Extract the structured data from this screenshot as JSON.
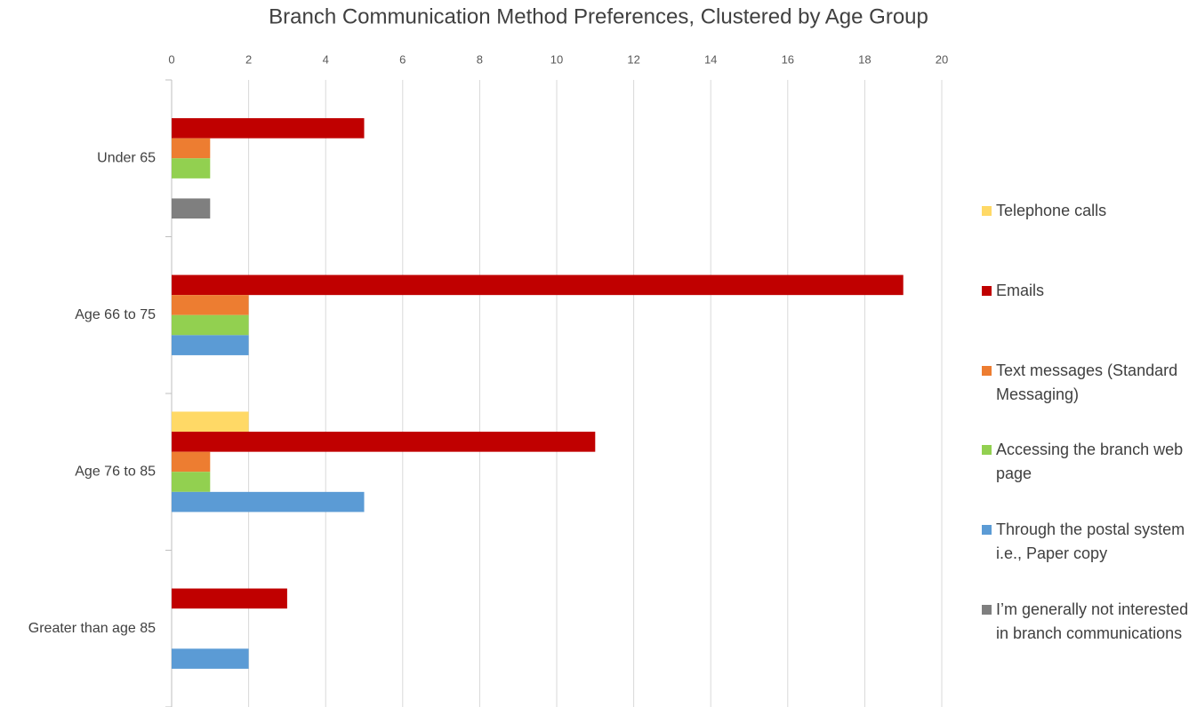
{
  "chart_data": {
    "type": "hbar",
    "title": "Branch Communication Method Preferences, Clustered by Age Group",
    "categories": [
      "Under 65",
      "Age 66 to 75",
      "Age 76 to 85",
      "Greater than age 85"
    ],
    "series": [
      {
        "name": "Telephone calls",
        "color": "#ffd966",
        "values": [
          0,
          0,
          2,
          0
        ]
      },
      {
        "name": "Emails",
        "color": "#c00000",
        "values": [
          5,
          19,
          11,
          3
        ]
      },
      {
        "name": "Text messages (Standard Messaging)",
        "color": "#ed7d31",
        "values": [
          1,
          2,
          1,
          0
        ]
      },
      {
        "name": "Accessing the branch web page",
        "color": "#92d050",
        "values": [
          1,
          2,
          1,
          0
        ]
      },
      {
        "name": "Through the postal system i.e., Paper copy",
        "color": "#5b9bd5",
        "values": [
          0,
          2,
          5,
          2
        ]
      },
      {
        "name": "I’m generally not interested in branch communications",
        "color": "#7f7f7f",
        "values": [
          1,
          0,
          0,
          0
        ]
      }
    ],
    "xlim": [
      0,
      20
    ],
    "xticks": [
      0,
      2,
      4,
      6,
      8,
      10,
      12,
      14,
      16,
      18,
      20
    ],
    "grid": true,
    "legend": "right"
  }
}
